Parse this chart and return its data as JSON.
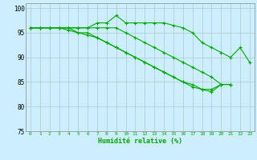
{
  "xlabel": "Humidité relative (%)",
  "background_color": "#cceeff",
  "grid_color": "#aacccc",
  "line_color": "#00aa00",
  "xmin": 0,
  "xmax": 23,
  "ymin": 75,
  "ymax": 100,
  "yticks": [
    75,
    80,
    85,
    90,
    95,
    100
  ],
  "series": [
    [
      96,
      96,
      96,
      96,
      96,
      96,
      96,
      97,
      97,
      98.5,
      97,
      97,
      97,
      97,
      97,
      96.5,
      96,
      95,
      93,
      92,
      91,
      90,
      92,
      89
    ],
    [
      96,
      96,
      96,
      96,
      96,
      96,
      96,
      96,
      96,
      96,
      95,
      94,
      93,
      92,
      91,
      90,
      89,
      88,
      87,
      86,
      84.5,
      84.5,
      null,
      null
    ],
    [
      96,
      96,
      96,
      96,
      96,
      95,
      95,
      94,
      93,
      92,
      91,
      90,
      89,
      88,
      87,
      86,
      85,
      84,
      83.5,
      83.5,
      84.5,
      84.5,
      null,
      null
    ],
    [
      96,
      96,
      96,
      96,
      95.5,
      95,
      94.5,
      94,
      93,
      92,
      91,
      90,
      89,
      88,
      87,
      86,
      85,
      84.5,
      83.5,
      83,
      84.5,
      84.5,
      null,
      null
    ]
  ]
}
